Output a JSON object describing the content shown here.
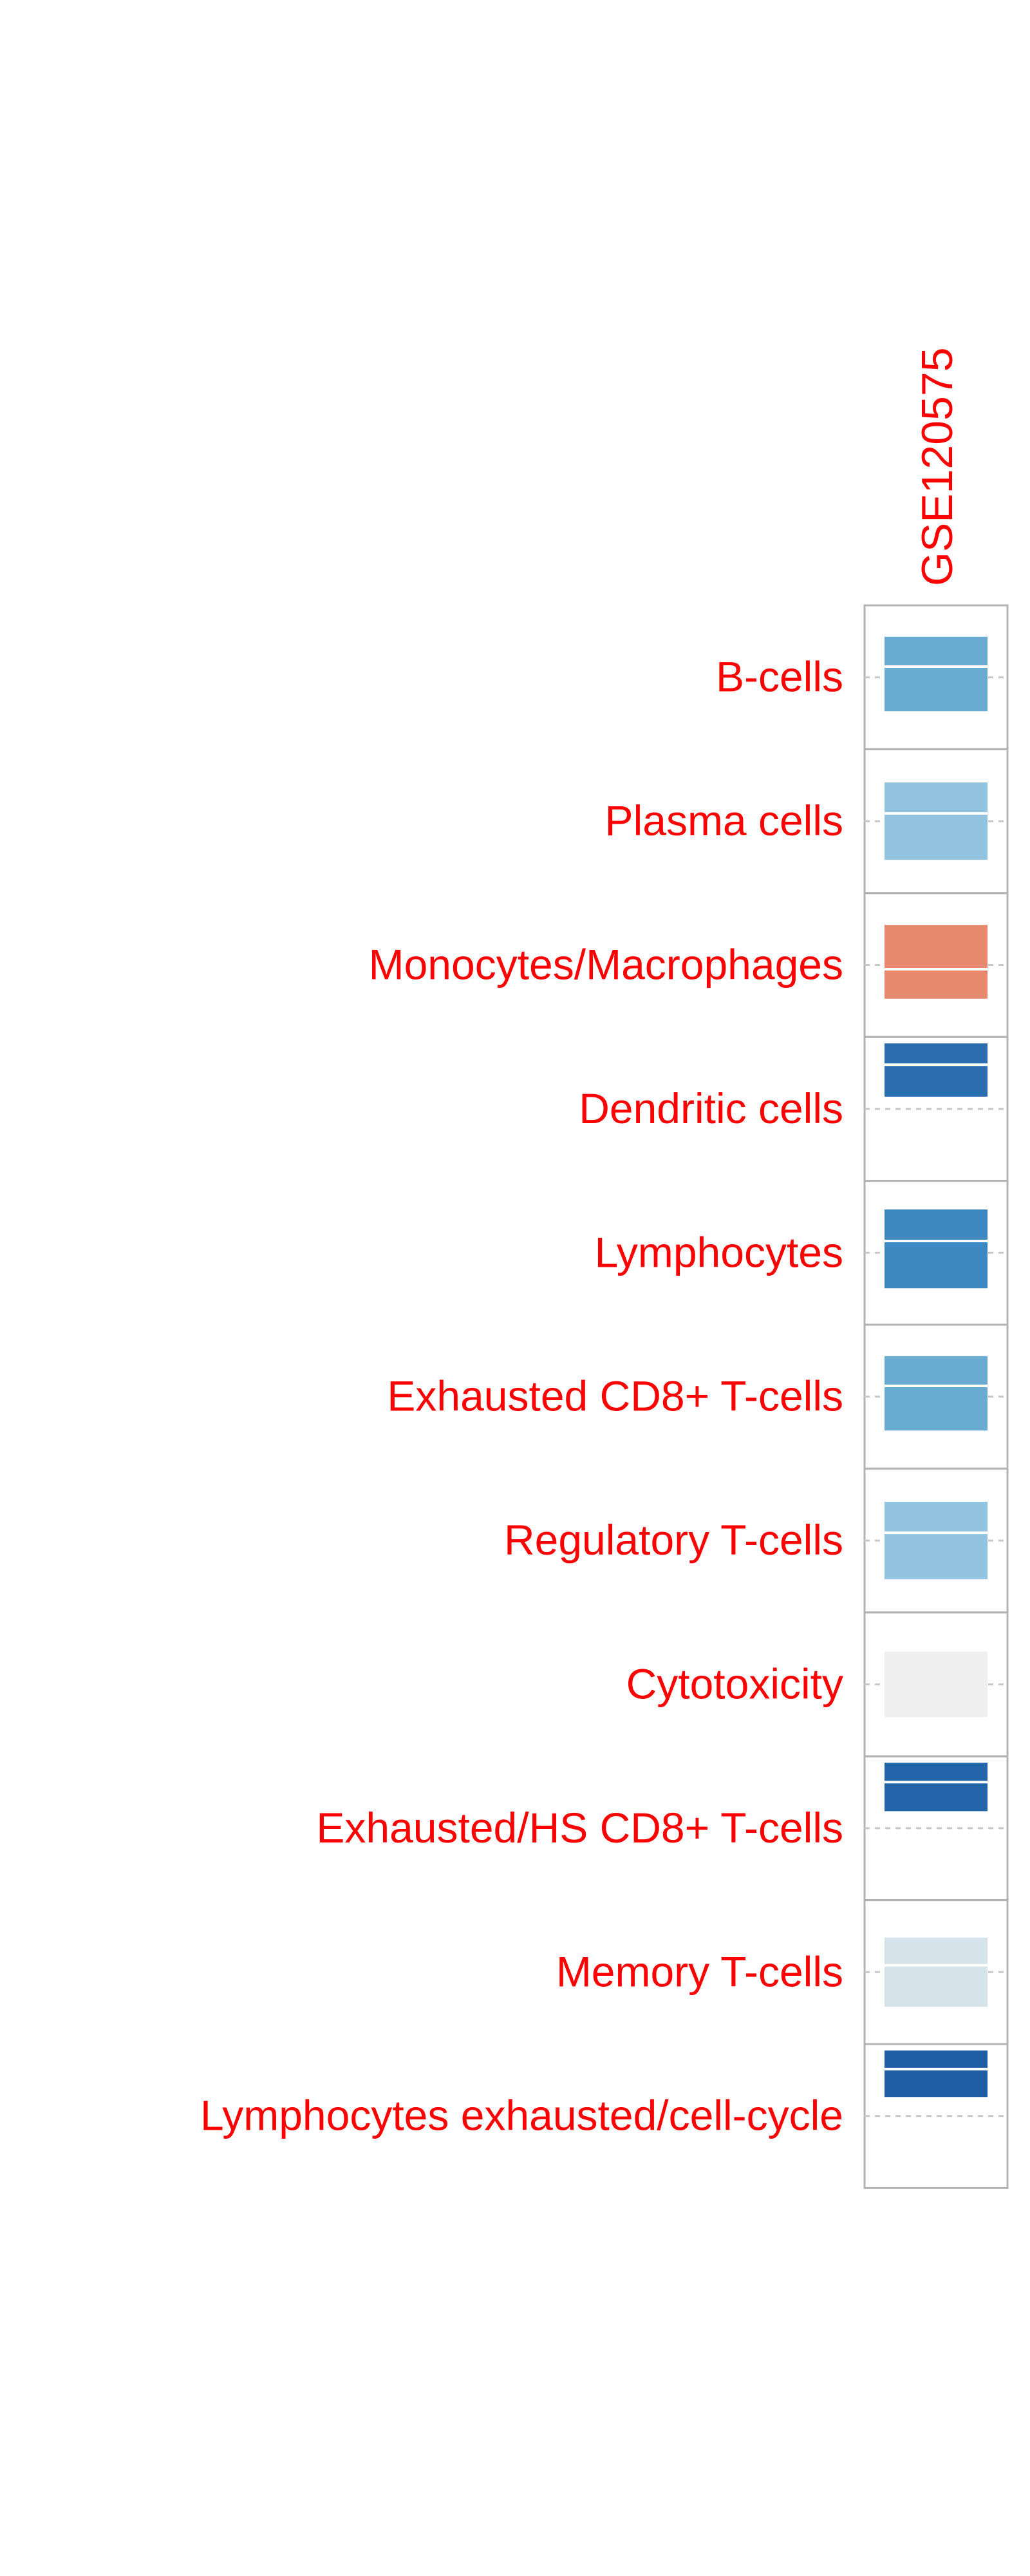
{
  "chart_data": {
    "type": "heatmap",
    "columns": [
      "GSE120575"
    ],
    "rows": [
      {
        "label": "B-cells",
        "value": -0.58,
        "color": "#6aabd1"
      },
      {
        "label": "Plasma cells",
        "value": -0.45,
        "color": "#93c4df"
      },
      {
        "label": "Monocytes/Macrophages",
        "value": 0.55,
        "color": "#e6896e"
      },
      {
        "label": "Dendritic cells",
        "value": -0.88,
        "color": "#2b6eb0"
      },
      {
        "label": "Lymphocytes",
        "value": -0.78,
        "color": "#3d88c0"
      },
      {
        "label": "Exhausted CD8+ T-cells",
        "value": -0.58,
        "color": "#6aabd1"
      },
      {
        "label": "Regulatory T-cells",
        "value": -0.45,
        "color": "#93c4df"
      },
      {
        "label": "Cytotoxicity",
        "value": -0.02,
        "color": "#efefef"
      },
      {
        "label": "Exhausted/HS CD8+ T-cells",
        "value": -0.93,
        "color": "#2265a8"
      },
      {
        "label": "Memory T-cells",
        "value": -0.15,
        "color": "#d6e3ea"
      },
      {
        "label": "Lymphocytes exhausted/cell-cycle",
        "value": -0.95,
        "color": "#1f5ea2"
      }
    ],
    "colors": {
      "label_text": "#ff0000",
      "grid": "#b3b3b3"
    }
  }
}
